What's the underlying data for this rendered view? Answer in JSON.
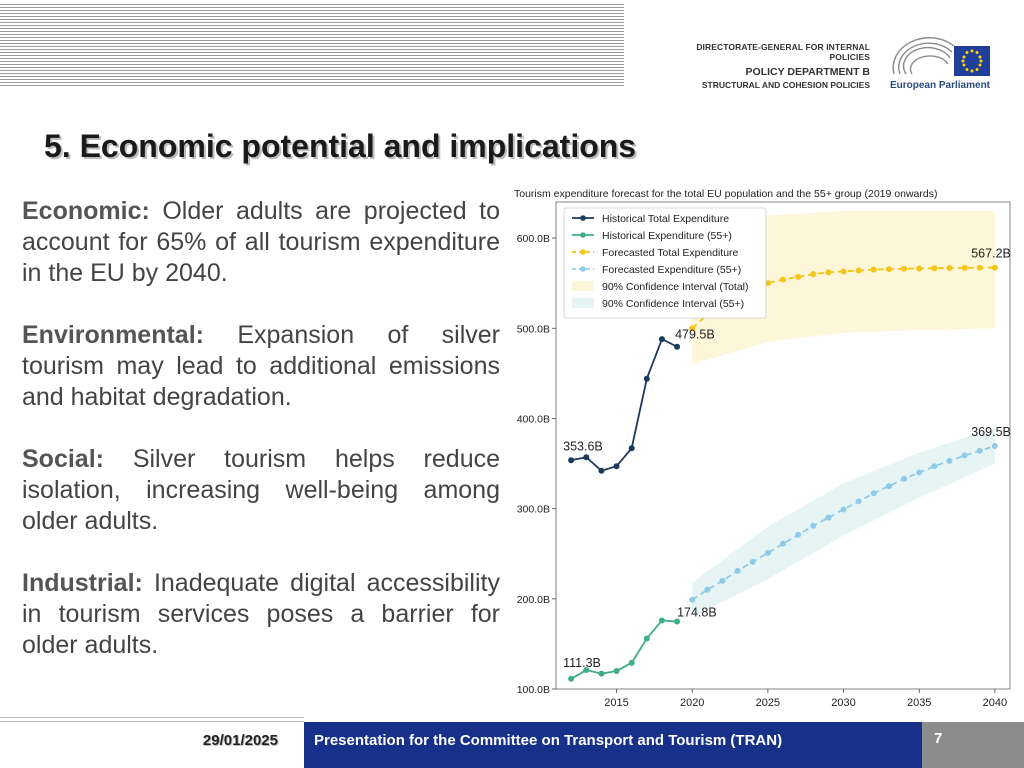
{
  "header": {
    "line1": "DIRECTORATE-GENERAL FOR INTERNAL POLICIES",
    "line2": "POLICY DEPARTMENT B",
    "line3": "STRUCTURAL AND COHESION POLICIES",
    "logo_name": "European Parliament"
  },
  "slide": {
    "title": "5. Economic potential and implications",
    "bullets": [
      {
        "label": "Economic:",
        "text": "Older adults are projected to account for 65% of all tourism expenditure in the EU by 2040."
      },
      {
        "label": "Environmental:",
        "text": "Expansion of silver tourism may lead to additional emissions and habitat degradation."
      },
      {
        "label": "Social:",
        "text": "Silver tourism helps reduce isolation, increasing well-being among older adults."
      },
      {
        "label": "Industrial:",
        "text": "Inadequate digital accessibility in tourism services poses a barrier for older adults."
      }
    ]
  },
  "footer": {
    "date": "29/01/2025",
    "presentation": "Presentation for the Committee on Transport and Tourism (TRAN)",
    "page": "7"
  },
  "chart_data": {
    "type": "line",
    "title": "Tourism expenditure forecast for the total EU population and the 55+ group (2019 onwards)",
    "xlim": [
      2011,
      2041
    ],
    "ylim": [
      100,
      640
    ],
    "x_ticks": [
      2015,
      2020,
      2025,
      2030,
      2035,
      2040
    ],
    "y_ticks": [
      100,
      200,
      300,
      400,
      500,
      600
    ],
    "y_tick_labels": [
      "100.0B",
      "200.0B",
      "300.0B",
      "400.0B",
      "500.0B",
      "600.0B"
    ],
    "legend_position": "top-left",
    "colors": {
      "total_hist": "#1b3a5c",
      "s55_hist": "#3fae85",
      "total_fc": "#f5c518",
      "s55_fc": "#8fcbe8",
      "ci_total": "#fdf6d8",
      "ci_55": "#e6f4f4"
    },
    "series": [
      {
        "name": "Historical Total Expenditure",
        "style": "solid",
        "x": [
          2012,
          2013,
          2014,
          2015,
          2016,
          2017,
          2018,
          2019
        ],
        "y": [
          353.6,
          357,
          342,
          347,
          367,
          444,
          488,
          479.5
        ]
      },
      {
        "name": "Historical Expenditure (55+)",
        "style": "solid",
        "x": [
          2012,
          2013,
          2014,
          2015,
          2016,
          2017,
          2018,
          2019
        ],
        "y": [
          111.3,
          121,
          117,
          120,
          129,
          156,
          176,
          174.8
        ]
      },
      {
        "name": "Forecasted Total Expenditure",
        "style": "dashed",
        "x": [
          2020,
          2021,
          2022,
          2023,
          2024,
          2025,
          2026,
          2027,
          2028,
          2029,
          2030,
          2031,
          2032,
          2033,
          2034,
          2035,
          2036,
          2037,
          2038,
          2039,
          2040
        ],
        "y": [
          500,
          515,
          527,
          536,
          544,
          550,
          554,
          557,
          560,
          562,
          563,
          564,
          565,
          565.5,
          566,
          566.3,
          566.6,
          566.8,
          567,
          567.1,
          567.2
        ]
      },
      {
        "name": "Forecasted Expenditure (55+)",
        "style": "dashed",
        "x": [
          2020,
          2021,
          2022,
          2023,
          2024,
          2025,
          2026,
          2027,
          2028,
          2029,
          2030,
          2031,
          2032,
          2033,
          2034,
          2035,
          2036,
          2037,
          2038,
          2039,
          2040
        ],
        "y": [
          199,
          210,
          220,
          231,
          241,
          251,
          261,
          271,
          281,
          290,
          299,
          308,
          317,
          325,
          333,
          340,
          347,
          353,
          359,
          364,
          369.5
        ]
      },
      {
        "name": "90% Confidence Interval (Total)",
        "type": "band",
        "x": [
          2020,
          2025,
          2030,
          2035,
          2040
        ],
        "lower": [
          460,
          485,
          495,
          498,
          500
        ],
        "upper": [
          600,
          625,
          630,
          630,
          630
        ]
      },
      {
        "name": "90% Confidence Interval (55+)",
        "type": "band",
        "x": [
          2020,
          2025,
          2030,
          2035,
          2040
        ],
        "lower": [
          180,
          222,
          270,
          312,
          350
        ],
        "upper": [
          218,
          280,
          328,
          362,
          390
        ]
      }
    ],
    "annotations": [
      {
        "text": "353.6B",
        "x": 2012,
        "y": 353.6
      },
      {
        "text": "479.5B",
        "x": 2019,
        "y": 479.5
      },
      {
        "text": "567.2B",
        "x": 2040,
        "y": 567.2
      },
      {
        "text": "369.5B",
        "x": 2040,
        "y": 369.5
      },
      {
        "text": "111.3B",
        "x": 2012,
        "y": 111.3
      },
      {
        "text": "174.8B",
        "x": 2019,
        "y": 174.8
      }
    ]
  }
}
